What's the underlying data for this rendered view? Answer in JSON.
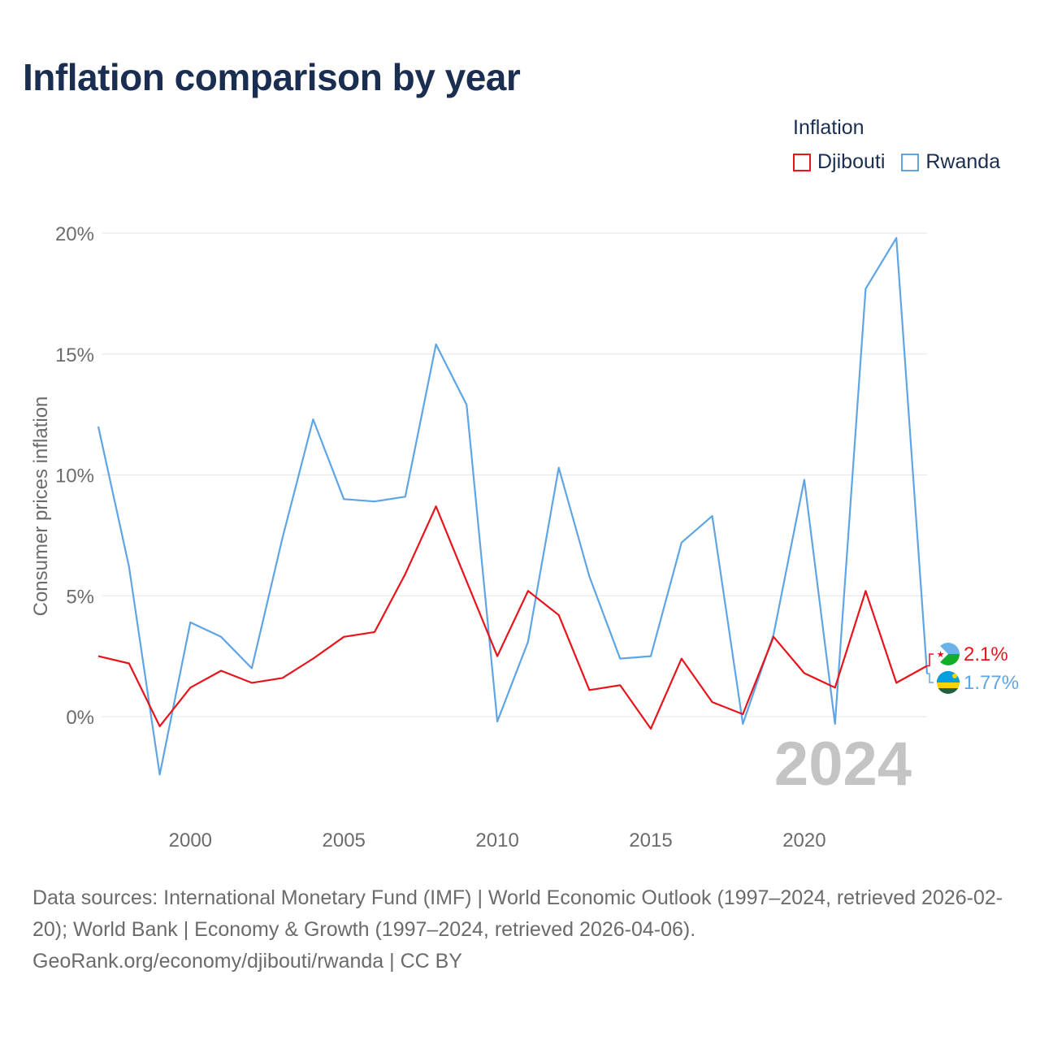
{
  "title": "Inflation comparison by year",
  "legend": {
    "title": "Inflation",
    "items": [
      {
        "label": "Djibouti",
        "color": "#e8141b"
      },
      {
        "label": "Rwanda",
        "color": "#5ea5e6"
      }
    ]
  },
  "year_label": "2024",
  "footer": {
    "sources": "Data sources: International Monetary Fund (IMF) | World Economic Outlook (1997–2024, retrieved 2026-02-20); World Bank | Economy & Growth (1997–2024, retrieved 2026-04-06).",
    "credit": "GeoRank.org/economy/djibouti/rwanda | CC BY"
  },
  "chart_data": {
    "type": "line",
    "title": "Inflation comparison by year",
    "xlabel": "",
    "ylabel": "Consumer prices inflation",
    "x": [
      1997,
      1998,
      1999,
      2000,
      2001,
      2002,
      2003,
      2004,
      2005,
      2006,
      2007,
      2008,
      2009,
      2010,
      2011,
      2012,
      2013,
      2014,
      2015,
      2016,
      2017,
      2018,
      2019,
      2020,
      2021,
      2022,
      2023,
      2024
    ],
    "xlim": [
      1997,
      2024
    ],
    "ylim": [
      -4,
      20
    ],
    "x_ticks": [
      2000,
      2005,
      2010,
      2015,
      2020
    ],
    "y_ticks": [
      0,
      5,
      10,
      15,
      20
    ],
    "y_tick_labels": [
      "0%",
      "5%",
      "10%",
      "15%",
      "20%"
    ],
    "grid": true,
    "series": [
      {
        "name": "Djibouti",
        "color": "#e8141b",
        "end_label": "2.1%",
        "values": [
          2.5,
          2.2,
          -0.4,
          1.2,
          1.9,
          1.4,
          1.6,
          2.4,
          3.3,
          3.5,
          5.9,
          8.7,
          5.6,
          2.5,
          5.2,
          4.2,
          1.1,
          1.3,
          -0.5,
          2.4,
          0.6,
          0.1,
          3.3,
          1.8,
          1.2,
          5.2,
          1.4,
          2.1
        ]
      },
      {
        "name": "Rwanda",
        "color": "#5ea5e6",
        "end_label": "1.77%",
        "values": [
          12.0,
          6.2,
          -2.4,
          3.9,
          3.3,
          2.0,
          7.4,
          12.3,
          9.0,
          8.9,
          9.1,
          15.4,
          12.9,
          -0.2,
          3.1,
          10.3,
          5.8,
          2.4,
          2.5,
          7.2,
          8.3,
          -0.3,
          3.4,
          9.8,
          -0.3,
          17.7,
          19.8,
          1.77
        ]
      }
    ]
  }
}
